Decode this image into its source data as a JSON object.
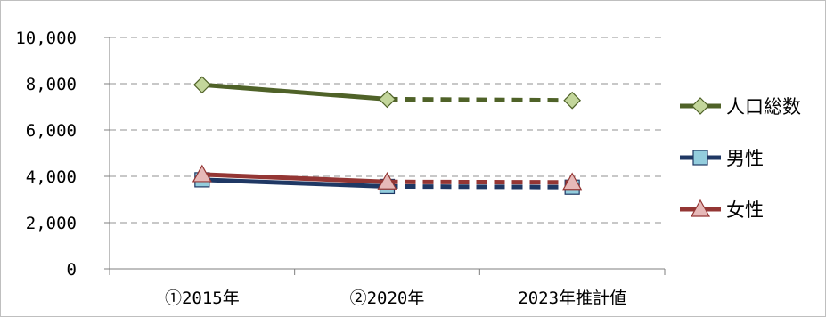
{
  "chart_data": {
    "type": "line",
    "categories": [
      "①2015年",
      "②2020年",
      "2023年推計値"
    ],
    "y_ticks": [
      0,
      2000,
      4000,
      6000,
      8000,
      10000
    ],
    "y_tick_labels": [
      "0",
      "2,000",
      "4,000",
      "6,000",
      "8,000",
      "10,000"
    ],
    "ylim": [
      0,
      10000
    ],
    "grid": true,
    "legend_position": "right",
    "series": [
      {
        "name": "人口総数",
        "values": [
          7950,
          7330,
          7280
        ],
        "color": "#4F6228",
        "marker": "diamond",
        "marker_fill": "#C3D69B",
        "projection_dashed": true
      },
      {
        "name": "男性",
        "values": [
          3850,
          3560,
          3530
        ],
        "color": "#1F3864",
        "marker": "square",
        "marker_fill": "#93CDDD",
        "projection_dashed": true
      },
      {
        "name": "女性",
        "values": [
          4080,
          3760,
          3740
        ],
        "color": "#943634",
        "marker": "triangle",
        "marker_fill": "#E6B9B8",
        "projection_dashed": true
      }
    ]
  }
}
